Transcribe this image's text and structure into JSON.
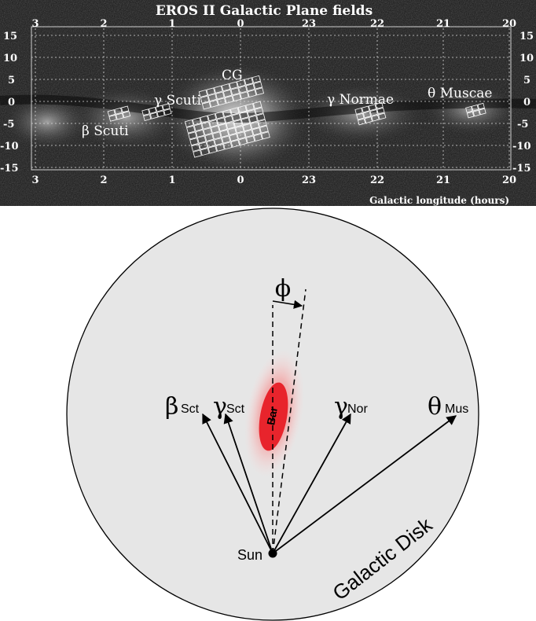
{
  "sky_panel": {
    "title": "EROS II Galactic Plane fields",
    "x_axis_label": "Galactic longitude (hours)",
    "top_ticks": [
      "3",
      "2",
      "1",
      "0",
      "23",
      "22",
      "21",
      "20"
    ],
    "bottom_ticks": [
      "3",
      "2",
      "1",
      "0",
      "23",
      "22",
      "21",
      "20"
    ],
    "lat_ticks": [
      "15",
      "10",
      "5",
      "0",
      "-5",
      "-10",
      "-15"
    ],
    "field_labels": {
      "cg": "CG",
      "gamma_scuti": "γ Scuti",
      "beta_scuti": "β Scuti",
      "gamma_normae": "γ Normae",
      "theta_muscae": "θ Muscae"
    },
    "colors": {
      "background": "#141414",
      "text": "#ffffff",
      "grid": "#d8d8d8"
    }
  },
  "diagram": {
    "disk_label": "Galactic Disk",
    "bar_label": "Bar",
    "sun_label": "Sun",
    "angle_symbol": "ϕ",
    "directions": {
      "beta_sct": {
        "symbol": "β",
        "sub": "Sct"
      },
      "gamma_sct": {
        "symbol": "γ",
        "sub": "Sct"
      },
      "gamma_nor": {
        "symbol": "γ",
        "sub": "Nor"
      },
      "theta_mus": {
        "symbol": "θ",
        "sub": "Mus"
      }
    },
    "colors": {
      "disk_fill": "#e6e6e6",
      "bar_fill": "#e8242c",
      "bar_glow": "#f28b8b",
      "line": "#000000"
    }
  }
}
